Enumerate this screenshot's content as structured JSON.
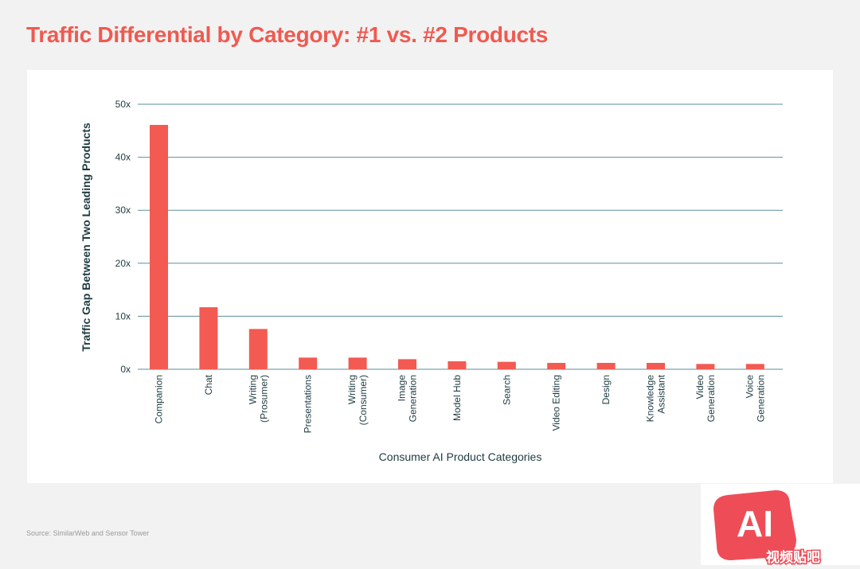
{
  "title": "Traffic Differential by Category: #1 vs. #2 Products",
  "source": "Source: SimilarWeb and Sensor Tower",
  "colors": {
    "title": "#ef5a50",
    "bar": "#f25a52",
    "gridline": "#5b8f9a",
    "axis_text": "#1e3b40"
  },
  "watermark": {
    "logo_text": "AI",
    "caption": "视频贴吧"
  },
  "chart_data": {
    "type": "bar",
    "xlabel": "Consumer AI Product Categories",
    "ylabel": "Traffic Gap Between Two Leading Products",
    "ylim": [
      0,
      50
    ],
    "yticks": [
      0,
      10,
      20,
      30,
      40,
      50
    ],
    "ytick_labels": [
      "0x",
      "10x",
      "20x",
      "30x",
      "40x",
      "50x"
    ],
    "grid": true,
    "legend": "none",
    "categories": [
      [
        "Companion"
      ],
      [
        "Chat"
      ],
      [
        "Writing",
        "(Prosumer)"
      ],
      [
        "Presentations"
      ],
      [
        "Writing",
        "(Consumer)"
      ],
      [
        "Image",
        "Generation"
      ],
      [
        "Model Hub"
      ],
      [
        "Search"
      ],
      [
        "Video Editing"
      ],
      [
        "Design"
      ],
      [
        "Knowledge",
        "Assistant"
      ],
      [
        "Video",
        "Generation"
      ],
      [
        "Voice",
        "Generation"
      ]
    ],
    "values": [
      46.1,
      11.7,
      7.6,
      2.2,
      2.2,
      1.9,
      1.5,
      1.4,
      1.2,
      1.2,
      1.2,
      1.0,
      1.0
    ]
  }
}
